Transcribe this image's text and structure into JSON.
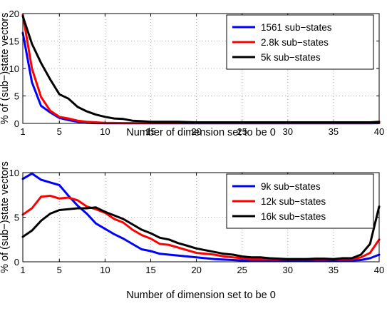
{
  "chart_data": [
    {
      "type": "line",
      "title": "",
      "xlabel": "Number of dimension set to be 0",
      "ylabel": "% of (sub−)state vectors",
      "xlim": [
        1,
        40
      ],
      "ylim": [
        0,
        20
      ],
      "xticks": [
        "1",
        "5",
        "10",
        "15",
        "20",
        "25",
        "30",
        "35",
        "40"
      ],
      "yticks": [
        "0",
        "5",
        "10",
        "15",
        "20"
      ],
      "grid": true,
      "legend_position": "top-right",
      "series": [
        {
          "name": "1561 sub−states",
          "color": "#0000ff",
          "x": [
            1,
            2,
            3,
            4,
            5,
            6,
            7,
            8,
            9,
            10,
            11,
            12,
            13,
            14,
            15,
            16,
            17,
            18,
            19,
            20,
            21,
            22,
            23,
            24,
            25,
            26,
            27,
            28,
            29,
            30,
            31,
            32,
            33,
            34,
            35,
            36,
            37,
            38,
            39,
            40
          ],
          "values": [
            16.5,
            7.5,
            3.2,
            2.0,
            1.0,
            0.6,
            0.3,
            0.1,
            0.05,
            0.03,
            0.02,
            0.02,
            0.02,
            0.02,
            0.02,
            0.02,
            0.02,
            0.02,
            0.02,
            0.02,
            0.02,
            0.02,
            0.02,
            0.02,
            0.02,
            0.02,
            0.02,
            0.02,
            0.02,
            0.02,
            0.02,
            0.02,
            0.02,
            0.02,
            0.02,
            0.02,
            0.02,
            0.02,
            0.02,
            0.05
          ]
        },
        {
          "name": "2.8k sub−states",
          "color": "#ff0000",
          "x": [
            1,
            2,
            3,
            4,
            5,
            6,
            7,
            8,
            9,
            10,
            11,
            12,
            13,
            14,
            15,
            16,
            17,
            18,
            19,
            20,
            21,
            22,
            23,
            24,
            25,
            26,
            27,
            28,
            29,
            30,
            31,
            32,
            33,
            34,
            35,
            36,
            37,
            38,
            39,
            40
          ],
          "values": [
            19.8,
            10.0,
            4.8,
            2.3,
            1.2,
            0.9,
            0.5,
            0.3,
            0.2,
            0.1,
            0.08,
            0.05,
            0.05,
            0.05,
            0.05,
            0.05,
            0.05,
            0.05,
            0.05,
            0.05,
            0.05,
            0.05,
            0.05,
            0.05,
            0.05,
            0.05,
            0.05,
            0.05,
            0.05,
            0.05,
            0.05,
            0.05,
            0.05,
            0.05,
            0.05,
            0.05,
            0.05,
            0.05,
            0.05,
            0.1
          ]
        },
        {
          "name": "5k sub−states",
          "color": "#000000",
          "x": [
            1,
            2,
            3,
            4,
            5,
            6,
            7,
            8,
            9,
            10,
            11,
            12,
            13,
            14,
            15,
            16,
            17,
            18,
            19,
            20,
            21,
            22,
            23,
            24,
            25,
            26,
            27,
            28,
            29,
            30,
            31,
            32,
            33,
            34,
            35,
            36,
            37,
            38,
            39,
            40
          ],
          "values": [
            19.5,
            14.5,
            11.0,
            8.0,
            5.3,
            4.5,
            3.0,
            2.2,
            1.6,
            1.2,
            0.9,
            0.8,
            0.5,
            0.4,
            0.3,
            0.3,
            0.3,
            0.3,
            0.25,
            0.2,
            0.2,
            0.2,
            0.2,
            0.2,
            0.2,
            0.2,
            0.2,
            0.2,
            0.2,
            0.2,
            0.2,
            0.2,
            0.2,
            0.2,
            0.2,
            0.2,
            0.2,
            0.2,
            0.2,
            0.3
          ]
        }
      ]
    },
    {
      "type": "line",
      "title": "",
      "xlabel": "Number of dimension set to be 0",
      "ylabel": "% of (sub−)state vectors",
      "xlim": [
        1,
        40
      ],
      "ylim": [
        0,
        10
      ],
      "xticks": [
        "1",
        "5",
        "10",
        "15",
        "20",
        "25",
        "30",
        "35",
        "40"
      ],
      "yticks": [
        "0",
        "5",
        "10"
      ],
      "grid": true,
      "legend_position": "top-right",
      "series": [
        {
          "name": "9k sub−states",
          "color": "#0000ff",
          "x": [
            1,
            2,
            3,
            4,
            5,
            6,
            7,
            8,
            9,
            10,
            11,
            12,
            13,
            14,
            15,
            16,
            17,
            18,
            19,
            20,
            21,
            22,
            23,
            24,
            25,
            26,
            27,
            28,
            29,
            30,
            31,
            32,
            33,
            34,
            35,
            36,
            37,
            38,
            39,
            40
          ],
          "values": [
            9.3,
            9.9,
            9.2,
            8.9,
            8.6,
            7.4,
            6.3,
            5.4,
            4.3,
            3.7,
            3.1,
            2.6,
            2.0,
            1.4,
            1.2,
            0.9,
            0.8,
            0.7,
            0.6,
            0.5,
            0.4,
            0.3,
            0.25,
            0.2,
            0.15,
            0.1,
            0.1,
            0.1,
            0.1,
            0.1,
            0.1,
            0.1,
            0.1,
            0.1,
            0.1,
            0.1,
            0.15,
            0.2,
            0.4,
            0.8
          ]
        },
        {
          "name": "12k sub−states",
          "color": "#ff0000",
          "x": [
            1,
            2,
            3,
            4,
            5,
            6,
            7,
            8,
            9,
            10,
            11,
            12,
            13,
            14,
            15,
            16,
            17,
            18,
            19,
            20,
            21,
            22,
            23,
            24,
            25,
            26,
            27,
            28,
            29,
            30,
            31,
            32,
            33,
            34,
            35,
            36,
            37,
            38,
            39,
            40
          ],
          "values": [
            5.3,
            6.0,
            7.3,
            7.4,
            7.1,
            7.2,
            6.9,
            6.2,
            5.9,
            5.5,
            4.8,
            4.4,
            3.6,
            3.0,
            2.6,
            2.0,
            1.9,
            1.6,
            1.3,
            1.0,
            0.9,
            0.8,
            0.6,
            0.5,
            0.4,
            0.3,
            0.3,
            0.3,
            0.3,
            0.3,
            0.3,
            0.3,
            0.3,
            0.3,
            0.3,
            0.3,
            0.3,
            0.5,
            1.0,
            2.5
          ]
        },
        {
          "name": "16k sub−states",
          "color": "#000000",
          "x": [
            1,
            2,
            3,
            4,
            5,
            6,
            7,
            8,
            9,
            10,
            11,
            12,
            13,
            14,
            15,
            16,
            17,
            18,
            19,
            20,
            21,
            22,
            23,
            24,
            25,
            26,
            27,
            28,
            29,
            30,
            31,
            32,
            33,
            34,
            35,
            36,
            37,
            38,
            39,
            40
          ],
          "values": [
            2.8,
            3.5,
            4.6,
            5.4,
            5.8,
            5.9,
            6.0,
            6.0,
            6.1,
            5.6,
            5.2,
            4.8,
            4.2,
            3.6,
            3.2,
            2.7,
            2.5,
            2.1,
            1.8,
            1.5,
            1.3,
            1.1,
            0.9,
            0.8,
            0.6,
            0.5,
            0.5,
            0.4,
            0.35,
            0.3,
            0.3,
            0.3,
            0.35,
            0.35,
            0.3,
            0.4,
            0.4,
            0.8,
            2.0,
            6.2
          ]
        }
      ]
    }
  ]
}
